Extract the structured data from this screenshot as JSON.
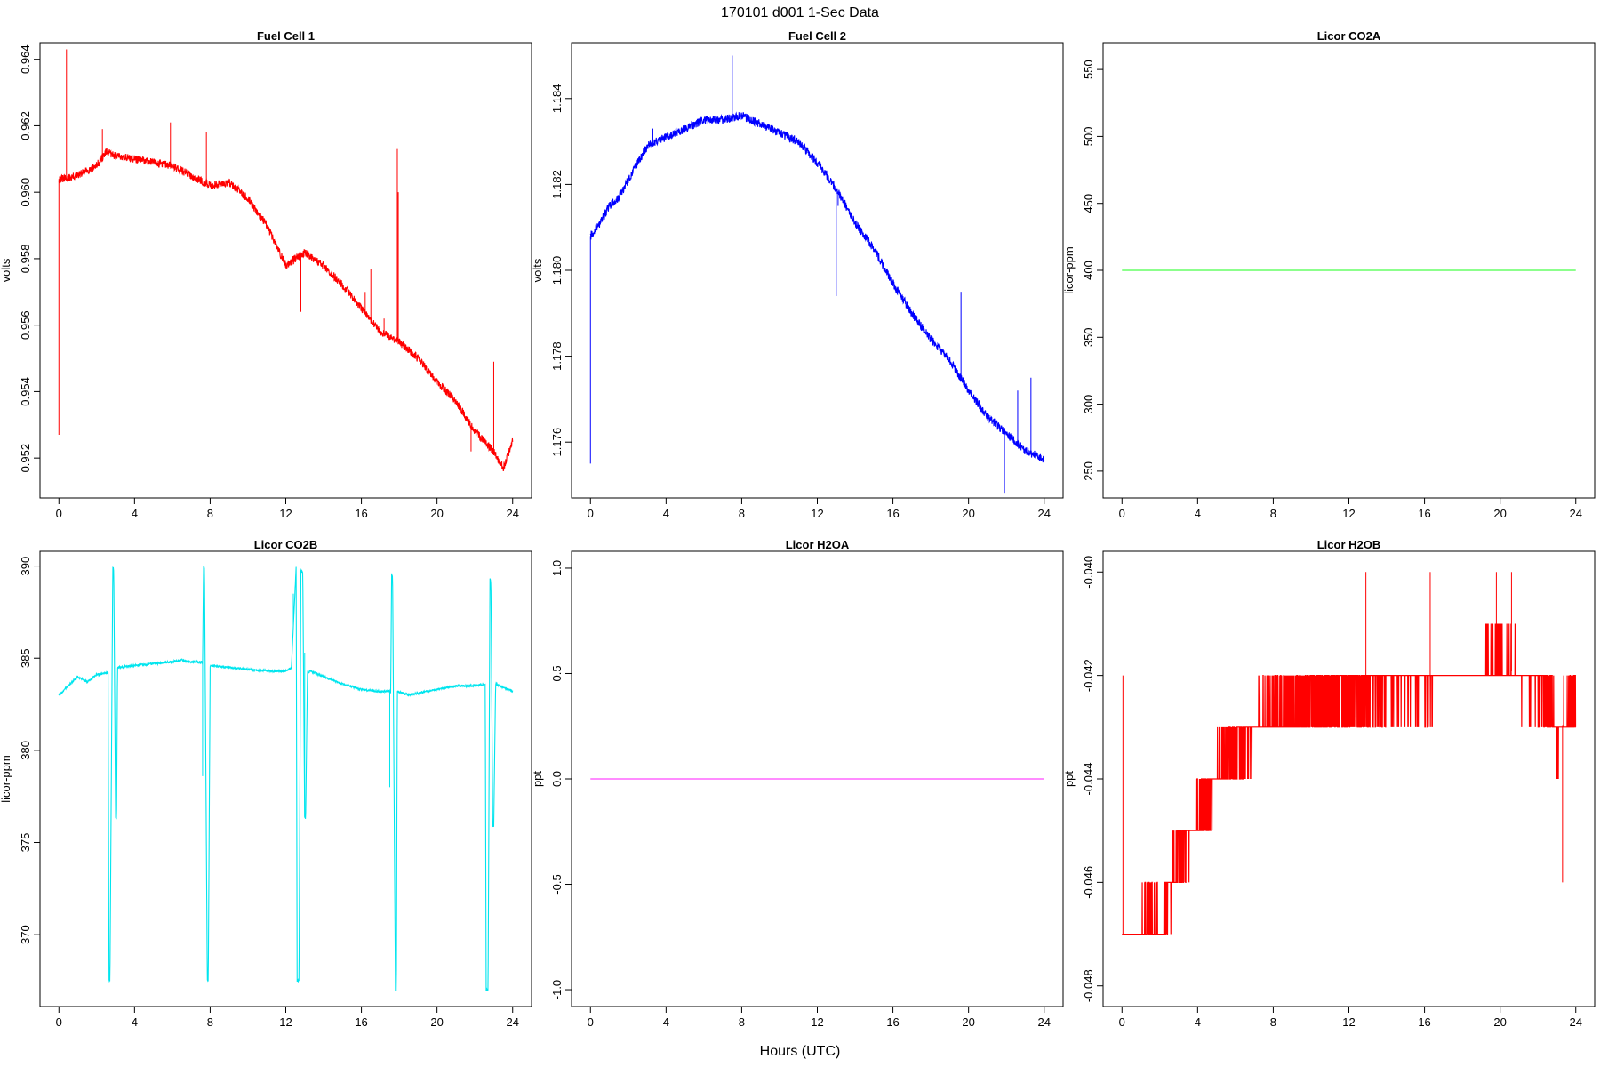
{
  "figure": {
    "title": "170101   d001   1-Sec Data",
    "xlabel": "Hours (UTC)"
  },
  "chart_data": [
    {
      "type": "line",
      "title": "Fuel Cell 1",
      "ylabel": "volts",
      "color": "#ff0000",
      "xlim": [
        -1,
        25
      ],
      "ylim": [
        0.9508,
        0.9645
      ],
      "xticks": [
        0,
        4,
        8,
        12,
        16,
        20,
        24
      ],
      "yticks": [
        0.952,
        0.954,
        0.956,
        0.958,
        0.96,
        0.962,
        0.964
      ],
      "ytick_labels": [
        "0.952",
        "0.954",
        "0.956",
        "0.958",
        "0.960",
        "0.962",
        "0.964"
      ],
      "noise": 0.00012,
      "x": [
        0,
        0.3,
        1,
        2,
        2.5,
        3,
        4,
        5,
        6,
        7,
        8,
        9,
        10,
        11,
        12,
        13,
        14,
        15,
        16,
        17,
        18,
        19,
        20,
        21,
        22,
        23,
        23.5,
        24
      ],
      "y": [
        0.9604,
        0.9604,
        0.9605,
        0.9608,
        0.9612,
        0.9611,
        0.961,
        0.9609,
        0.9608,
        0.9605,
        0.9602,
        0.9603,
        0.9598,
        0.959,
        0.9578,
        0.9582,
        0.9578,
        0.9572,
        0.9565,
        0.9558,
        0.9555,
        0.955,
        0.9543,
        0.9537,
        0.9528,
        0.9522,
        0.9517,
        0.9525
      ],
      "spikes": [
        {
          "x": 0.0,
          "y": 0.9527
        },
        {
          "x": 0.4,
          "y": 0.9643
        },
        {
          "x": 2.3,
          "y": 0.9619
        },
        {
          "x": 5.9,
          "y": 0.9621
        },
        {
          "x": 7.8,
          "y": 0.9618
        },
        {
          "x": 12.8,
          "y": 0.9564
        },
        {
          "x": 16.2,
          "y": 0.957
        },
        {
          "x": 16.5,
          "y": 0.9577
        },
        {
          "x": 17.2,
          "y": 0.9562
        },
        {
          "x": 17.9,
          "y": 0.9613
        },
        {
          "x": 17.95,
          "y": 0.96
        },
        {
          "x": 21.8,
          "y": 0.9522
        },
        {
          "x": 23.0,
          "y": 0.9549
        }
      ]
    },
    {
      "type": "line",
      "title": "Fuel Cell 2",
      "ylabel": "volts",
      "color": "#0000ff",
      "xlim": [
        -1,
        25
      ],
      "ylim": [
        1.1747,
        1.1853
      ],
      "xticks": [
        0,
        4,
        8,
        12,
        16,
        20,
        24
      ],
      "yticks": [
        1.176,
        1.178,
        1.18,
        1.182,
        1.184
      ],
      "ytick_labels": [
        "1.176",
        "1.178",
        "1.180",
        "1.182",
        "1.184"
      ],
      "noise": 0.0001,
      "x": [
        0,
        0.5,
        1,
        1.5,
        2,
        2.5,
        3,
        3.5,
        4,
        5,
        6,
        7,
        8,
        9,
        10,
        11,
        12,
        13,
        13.5,
        14,
        15,
        16,
        17,
        18,
        19,
        20,
        21,
        22,
        23,
        24
      ],
      "y": [
        1.1808,
        1.1811,
        1.1815,
        1.1817,
        1.1821,
        1.1825,
        1.1829,
        1.183,
        1.1831,
        1.1833,
        1.1835,
        1.1835,
        1.1836,
        1.1834,
        1.1832,
        1.183,
        1.1825,
        1.1819,
        1.1815,
        1.1811,
        1.1805,
        1.1797,
        1.179,
        1.1784,
        1.1779,
        1.1772,
        1.1766,
        1.1762,
        1.1758,
        1.1756
      ],
      "spikes": [
        {
          "x": 0.0,
          "y": 1.1755
        },
        {
          "x": 3.3,
          "y": 1.1833
        },
        {
          "x": 7.5,
          "y": 1.185
        },
        {
          "x": 13.0,
          "y": 1.1794
        },
        {
          "x": 13.1,
          "y": 1.1815
        },
        {
          "x": 19.6,
          "y": 1.1795
        },
        {
          "x": 21.9,
          "y": 1.1748
        },
        {
          "x": 22.6,
          "y": 1.1772
        },
        {
          "x": 23.3,
          "y": 1.1775
        }
      ]
    },
    {
      "type": "line",
      "title": "Licor CO2A",
      "ylabel": "licor-ppm",
      "color": "#66ff66",
      "xlim": [
        -1,
        25
      ],
      "ylim": [
        230,
        570
      ],
      "xticks": [
        0,
        4,
        8,
        12,
        16,
        20,
        24
      ],
      "yticks": [
        250,
        300,
        350,
        400,
        450,
        500,
        550
      ],
      "ytick_labels": [
        "250",
        "300",
        "350",
        "400",
        "450",
        "500",
        "550"
      ],
      "noise": 0,
      "x": [
        0,
        24
      ],
      "y": [
        400,
        400
      ],
      "spikes": []
    },
    {
      "type": "line",
      "title": "Licor CO2B",
      "ylabel": "licor-ppm",
      "color": "#00e5ee",
      "xlim": [
        -1,
        25
      ],
      "ylim": [
        366.1,
        390.8
      ],
      "xticks": [
        0,
        4,
        8,
        12,
        16,
        20,
        24
      ],
      "yticks": [
        370,
        375,
        380,
        385,
        390
      ],
      "ytick_labels": [
        "370",
        "375",
        "380",
        "385",
        "390"
      ],
      "noise": 0.06,
      "x": [
        0,
        0.5,
        1,
        1.5,
        2,
        2.6,
        2.65,
        2.7,
        2.85,
        2.9,
        3.0,
        3.05,
        3.1,
        4,
        5,
        6,
        6.5,
        7,
        7.6,
        7.65,
        7.7,
        7.85,
        7.9,
        8.0,
        9,
        10,
        11,
        12,
        12.3,
        12.55,
        12.6,
        12.7,
        12.8,
        12.9,
        13.0,
        13.05,
        13.15,
        13.2,
        13.3,
        14,
        15,
        16,
        17,
        17.55,
        17.6,
        17.65,
        17.8,
        17.85,
        17.9,
        18.5,
        19,
        20,
        21,
        22,
        22.55,
        22.6,
        22.7,
        22.8,
        22.85,
        22.95,
        23.0,
        23.1,
        24
      ],
      "y": [
        383.0,
        383.5,
        384.0,
        383.7,
        384.1,
        384.2,
        367.5,
        367.5,
        389.9,
        389.8,
        376.3,
        376.3,
        384.5,
        384.6,
        384.7,
        384.8,
        384.9,
        384.8,
        384.8,
        390.0,
        389.9,
        367.5,
        367.5,
        384.6,
        384.5,
        384.4,
        384.3,
        384.3,
        384.5,
        390.0,
        367.5,
        367.5,
        389.8,
        389.6,
        376.4,
        376.3,
        384.4,
        384.2,
        384.3,
        384.0,
        383.6,
        383.3,
        383.2,
        383.2,
        389.6,
        389.4,
        367.0,
        367.0,
        383.2,
        383.0,
        383.1,
        383.3,
        383.5,
        383.5,
        383.6,
        367.0,
        367.0,
        389.3,
        389.1,
        375.9,
        375.9,
        383.6,
        383.2
      ],
      "spikes": [
        {
          "x": 7.6,
          "y": 378.6
        },
        {
          "x": 12.4,
          "y": 388.5
        },
        {
          "x": 13.0,
          "y": 385.3
        },
        {
          "x": 17.5,
          "y": 378.0
        }
      ]
    },
    {
      "type": "line",
      "title": "Licor H2OA",
      "ylabel": "ppt",
      "color": "#ff66ff",
      "xlim": [
        -1,
        25
      ],
      "ylim": [
        -1.08,
        1.08
      ],
      "xticks": [
        0,
        4,
        8,
        12,
        16,
        20,
        24
      ],
      "yticks": [
        -1.0,
        -0.5,
        0.0,
        0.5,
        1.0
      ],
      "ytick_labels": [
        "-1.0",
        "-0.5",
        "0.0",
        "0.5",
        "1.0"
      ],
      "noise": 0,
      "x": [
        0,
        24
      ],
      "y": [
        0,
        0
      ],
      "spikes": []
    },
    {
      "type": "line",
      "title": "Licor H2OB",
      "ylabel": "ppt",
      "color": "#ff0000",
      "xlim": [
        -1,
        25
      ],
      "ylim": [
        -0.0484,
        -0.0396
      ],
      "xticks": [
        0,
        4,
        8,
        12,
        16,
        20,
        24
      ],
      "yticks": [
        -0.048,
        -0.046,
        -0.044,
        -0.042,
        -0.04
      ],
      "ytick_labels": [
        "-0.048",
        "-0.046",
        "-0.044",
        "-0.042",
        "-0.040"
      ],
      "noise": 0,
      "quantized": true,
      "quant_step": 0.001,
      "x": [
        0,
        0.5,
        1,
        1.5,
        2,
        2.5,
        3,
        4,
        5,
        6,
        7,
        8,
        9,
        10,
        11,
        12,
        13,
        14,
        15,
        16,
        17,
        18,
        19,
        20,
        21,
        22,
        22.5,
        23,
        23.5,
        24
      ],
      "y": [
        -0.047,
        -0.047,
        -0.047,
        -0.0465,
        -0.047,
        -0.0462,
        -0.0455,
        -0.0448,
        -0.044,
        -0.0435,
        -0.043,
        -0.0428,
        -0.0426,
        -0.0424,
        -0.0424,
        -0.0423,
        -0.0422,
        -0.0422,
        -0.0421,
        -0.0421,
        -0.042,
        -0.042,
        -0.042,
        -0.0418,
        -0.042,
        -0.0422,
        -0.0425,
        -0.0432,
        -0.0428,
        -0.0424
      ],
      "spikes": [
        {
          "x": 0.05,
          "y": -0.042
        },
        {
          "x": 12.9,
          "y": -0.04
        },
        {
          "x": 16.3,
          "y": -0.04
        },
        {
          "x": 19.8,
          "y": -0.04
        },
        {
          "x": 20.6,
          "y": -0.04
        },
        {
          "x": 23.3,
          "y": -0.046
        }
      ]
    }
  ]
}
